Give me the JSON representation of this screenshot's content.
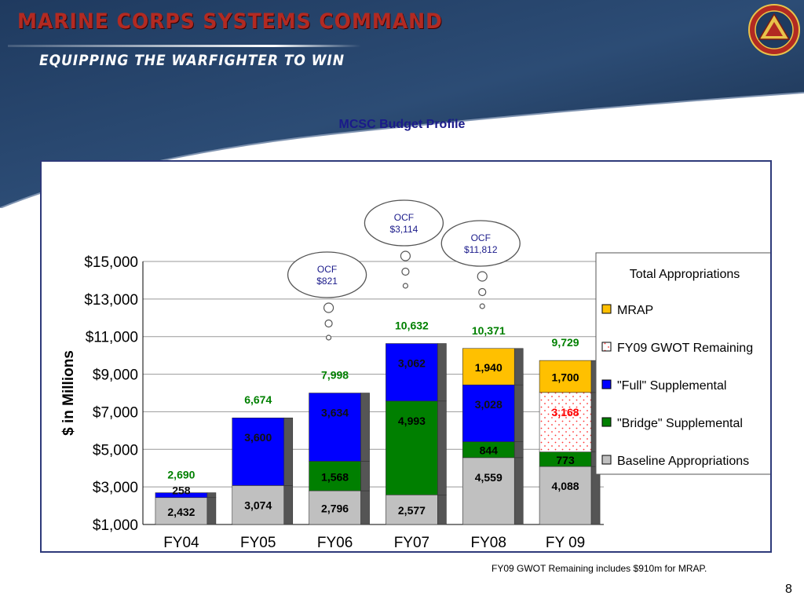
{
  "header": {
    "org": "MARINE CORPS SYSTEMS COMMAND",
    "tagline": "EQUIPPING THE WARFIGHTER TO WIN"
  },
  "footnote": "FY09 GWOT Remaining includes $910m for MRAP.",
  "page_number": "8",
  "colors": {
    "baseline": "#c0c0c0",
    "bridge": "#007f00",
    "full": "#0000ff",
    "gwot": "#ffffff",
    "gwot_dots": "#ff3333",
    "mrap": "#ffc000",
    "total_label": "#008000",
    "panel_border": "#2e3a7a",
    "title": "#1a1a8a",
    "ocf_text": "#1a1a8a"
  },
  "chart_data": {
    "type": "bar",
    "stacked": true,
    "title": "MCSC Budget Profile",
    "ylabel": "$ in Millions",
    "ylim": [
      1000,
      15000
    ],
    "yticks": [
      "$1,000",
      "$3,000",
      "$5,000",
      "$7,000",
      "$9,000",
      "$11,000",
      "$13,000",
      "$15,000"
    ],
    "categories": [
      "FY04",
      "FY05",
      "FY06",
      "FY07",
      "FY08",
      "FY 09"
    ],
    "legend_title": "Total Appropriations",
    "legend_position": "right",
    "series": [
      {
        "key": "baseline",
        "name": "Baseline Appropriations",
        "values": [
          2432,
          3074,
          2796,
          2577,
          4559,
          4088
        ],
        "labels": [
          "2,432",
          "3,074",
          "2,796",
          "2,577",
          "4,559",
          "4,088"
        ]
      },
      {
        "key": "bridge",
        "name": "\"Bridge\" Supplemental",
        "values": [
          0,
          0,
          1568,
          4993,
          844,
          773
        ],
        "labels": [
          "",
          "",
          "1,568",
          "4,993",
          "844",
          "773"
        ]
      },
      {
        "key": "full",
        "name": "\"Full\" Supplemental",
        "values": [
          258,
          3600,
          3634,
          3062,
          3028,
          0
        ],
        "labels": [
          "258",
          "3,600",
          "3,634",
          "3,062",
          "3,028",
          ""
        ]
      },
      {
        "key": "gwot",
        "name": "FY09 GWOT Remaining",
        "values": [
          0,
          0,
          0,
          0,
          0,
          3168
        ],
        "labels": [
          "",
          "",
          "",
          "",
          "",
          "3,168"
        ]
      },
      {
        "key": "mrap",
        "name": "MRAP",
        "values": [
          0,
          0,
          0,
          0,
          1940,
          1700
        ],
        "labels": [
          "",
          "",
          "",
          "",
          "1,940",
          "1,700"
        ]
      }
    ],
    "totals": [
      "2,690",
      "6,674",
      "7,998",
      "10,632",
      "10,371",
      "9,729"
    ],
    "annotations": [
      {
        "category": "FY06",
        "line1": "OCF",
        "line2": "$821"
      },
      {
        "category": "FY07",
        "line1": "OCF",
        "line2": "$3,114"
      },
      {
        "category": "FY08",
        "line1": "OCF",
        "line2": "$11,812"
      }
    ]
  }
}
